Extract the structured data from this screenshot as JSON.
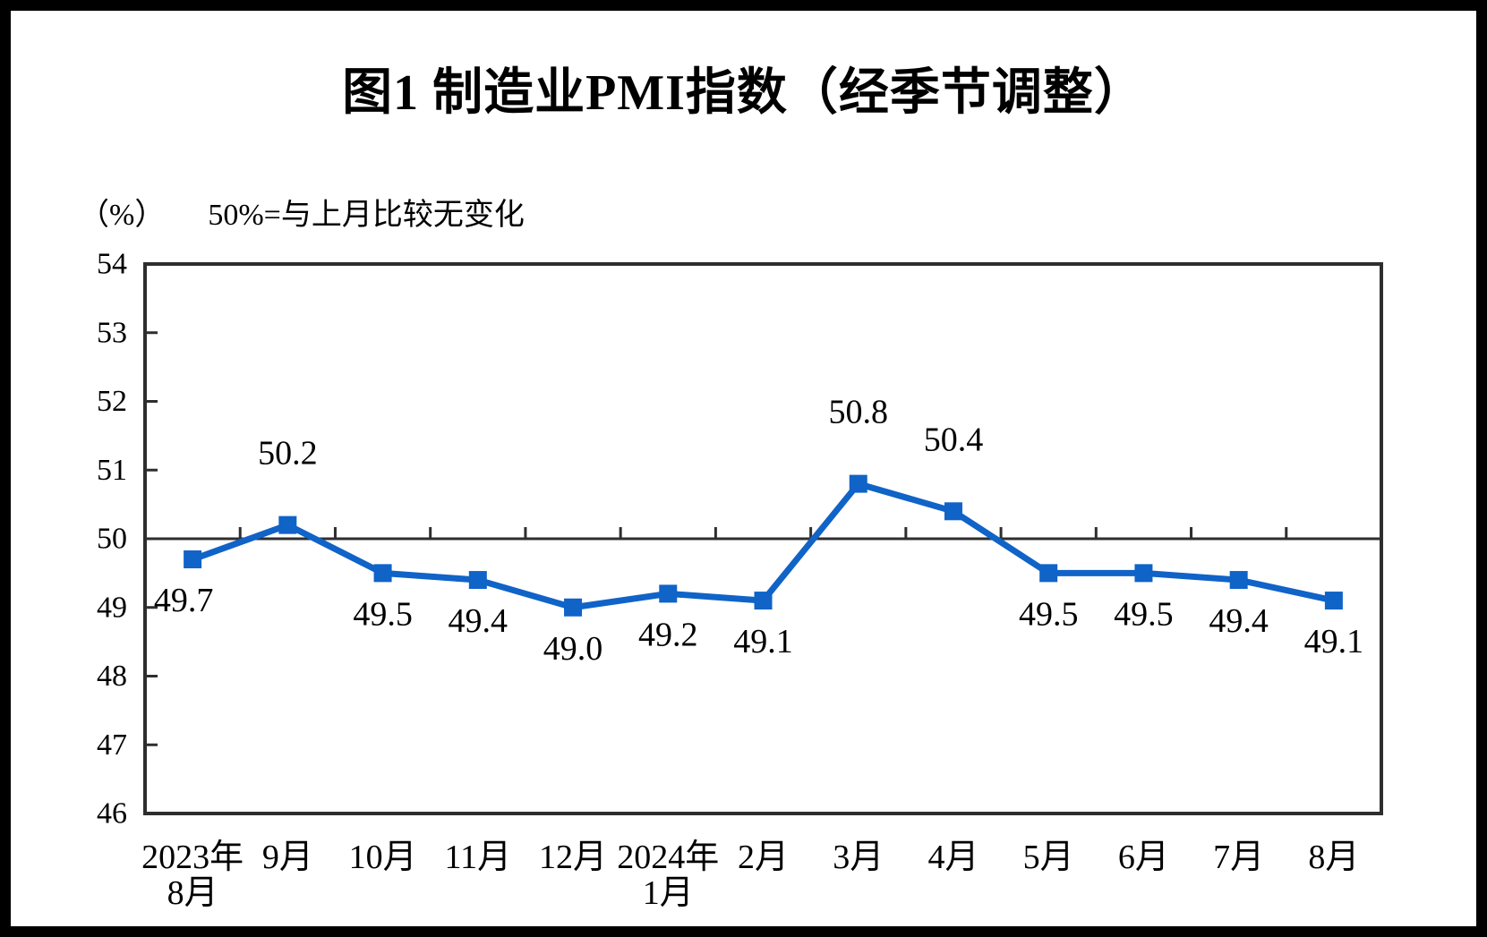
{
  "title": "图1  制造业PMI指数（经季节调整）",
  "subtitle": {
    "unit": "（%）",
    "note": "50%=与上月比较无变化"
  },
  "chart_data": {
    "type": "line",
    "title": "图1  制造业PMI指数（经季节调整）",
    "unit_label": "（%）",
    "reference_note": "50%=与上月比较无变化",
    "categories": [
      [
        "2023年",
        "8月"
      ],
      [
        "9月"
      ],
      [
        "10月"
      ],
      [
        "11月"
      ],
      [
        "12月"
      ],
      [
        "2024年",
        "1月"
      ],
      [
        "2月"
      ],
      [
        "3月"
      ],
      [
        "4月"
      ],
      [
        "5月"
      ],
      [
        "6月"
      ],
      [
        "7月"
      ],
      [
        "8月"
      ]
    ],
    "series": [
      {
        "name": "制造业PMI",
        "values": [
          49.7,
          50.2,
          49.5,
          49.4,
          49.0,
          49.2,
          49.1,
          50.8,
          50.4,
          49.5,
          49.5,
          49.4,
          49.1
        ],
        "color": "#1063C7"
      }
    ],
    "data_labels": [
      "49.7",
      "50.2",
      "49.5",
      "49.4",
      "49.0",
      "49.2",
      "49.1",
      "50.8",
      "50.4",
      "49.5",
      "49.5",
      "49.4",
      "49.1"
    ],
    "label_positions": [
      "below",
      "above",
      "below",
      "below",
      "below",
      "below",
      "below",
      "above",
      "above",
      "below",
      "below",
      "below",
      "below"
    ],
    "label_dx": [
      -10,
      0,
      0,
      0,
      0,
      0,
      0,
      0,
      0,
      0,
      0,
      0,
      0
    ],
    "ylim": [
      46,
      54
    ],
    "ytick_labels": [
      "54",
      "53",
      "52",
      "51",
      "50",
      "49",
      "48",
      "47",
      "46"
    ],
    "reference_line": 50,
    "grid": false,
    "legend": "none",
    "axis_color": "#2e2e2e",
    "marker": "square"
  }
}
